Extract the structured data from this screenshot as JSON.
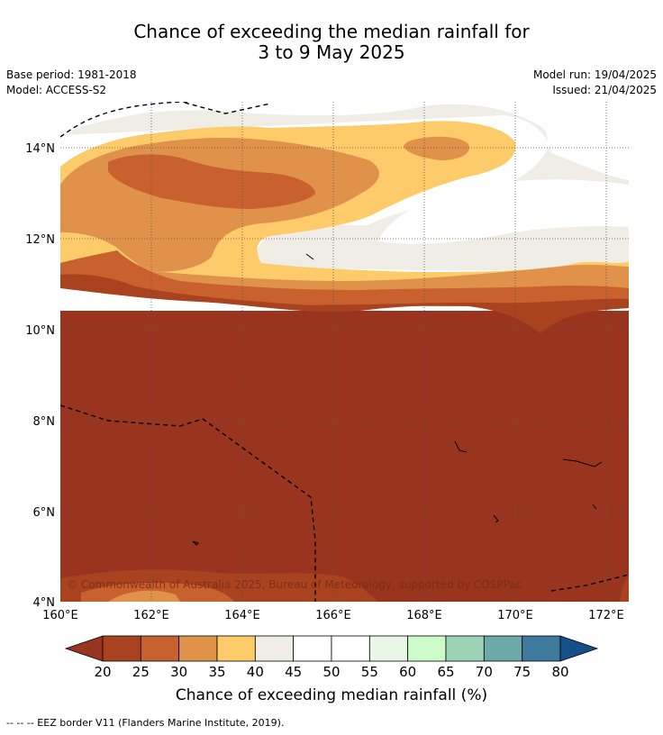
{
  "title_line1": "Chance of exceeding the median rainfall for",
  "title_line2": "3 to 9 May 2025",
  "base_period": "Base period: 1981-2018",
  "model": "Model: ACCESS-S2",
  "model_run": "Model run: 19/04/2025",
  "issued": "Issued: 21/04/2025",
  "copyright": "© Commonwealth of Australia 2025, Bureau of Meteorology, supported by COSPPac",
  "lon_ticks": [
    "160°E",
    "162°E",
    "164°E",
    "166°E",
    "168°E",
    "170°E",
    "172°E"
  ],
  "lat_ticks": [
    "14°N",
    "12°N",
    "10°N",
    "8°N",
    "6°N",
    "4°N"
  ],
  "colorbar": {
    "label": "Chance of exceeding median rainfall (%)",
    "ticks": [
      "20",
      "25",
      "30",
      "35",
      "40",
      "45",
      "50",
      "55",
      "60",
      "65",
      "70",
      "75",
      "80"
    ],
    "colors": [
      "#a8421f",
      "#c9612f",
      "#e0924a",
      "#fdcb6a",
      "#f0ece6",
      "#ffffff",
      "#ffffff",
      "#e9f7e7",
      "#cdfbc8",
      "#9ed2b7",
      "#6da9a8",
      "#3f799d"
    ],
    "under_color": "#99341f",
    "over_color": "#174f8a"
  },
  "legend_footer": "-- -- -- EEZ border V11 (Flanders Marine Institute, 2019)."
}
